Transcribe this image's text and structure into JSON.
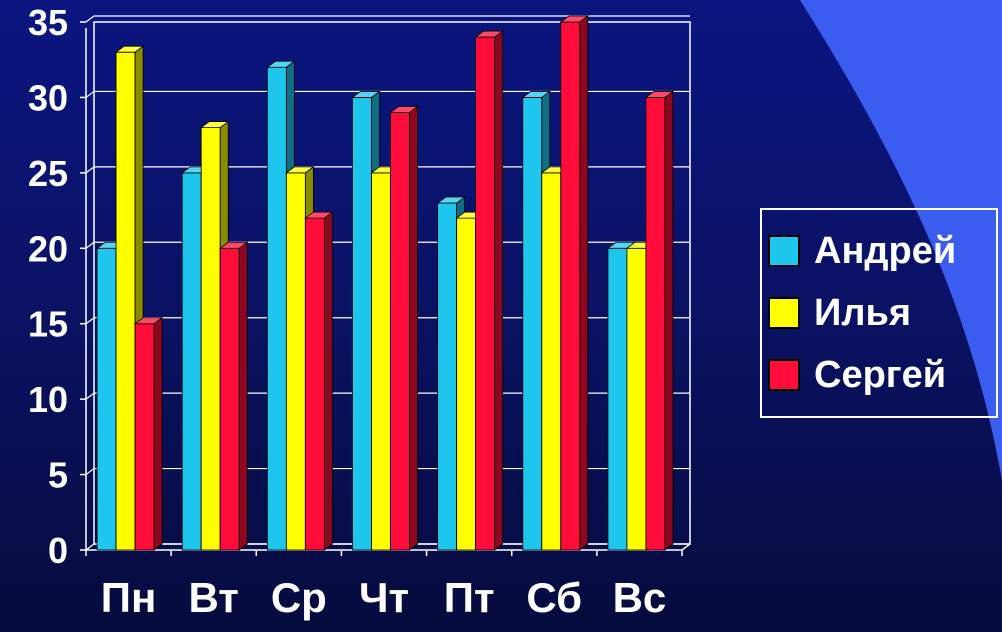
{
  "chart_data": {
    "type": "bar",
    "categories": [
      "Пн",
      "Вт",
      "Ср",
      "Чт",
      "Пт",
      "Сб",
      "Вс"
    ],
    "series": [
      {
        "name": "Андрей",
        "color": "#1ec6ee",
        "values": [
          20,
          25,
          32,
          30,
          23,
          30,
          20
        ]
      },
      {
        "name": "Илья",
        "color": "#ffff00",
        "values": [
          33,
          28,
          25,
          25,
          22,
          25,
          20
        ]
      },
      {
        "name": "Сергей",
        "color": "#ff0c3a",
        "values": [
          15,
          20,
          22,
          29,
          34,
          35,
          30
        ]
      }
    ],
    "ylim": [
      0,
      35
    ],
    "yticks": [
      "0",
      "5",
      "10",
      "15",
      "20",
      "25",
      "30",
      "35"
    ],
    "grid": true,
    "legend_position": "right",
    "style": "3d-clustered-column"
  },
  "colors": {
    "background": "#0a1266",
    "decorative_swoosh": "#3a5df0",
    "gridline": "#ffffff",
    "text": "#ffffff"
  }
}
